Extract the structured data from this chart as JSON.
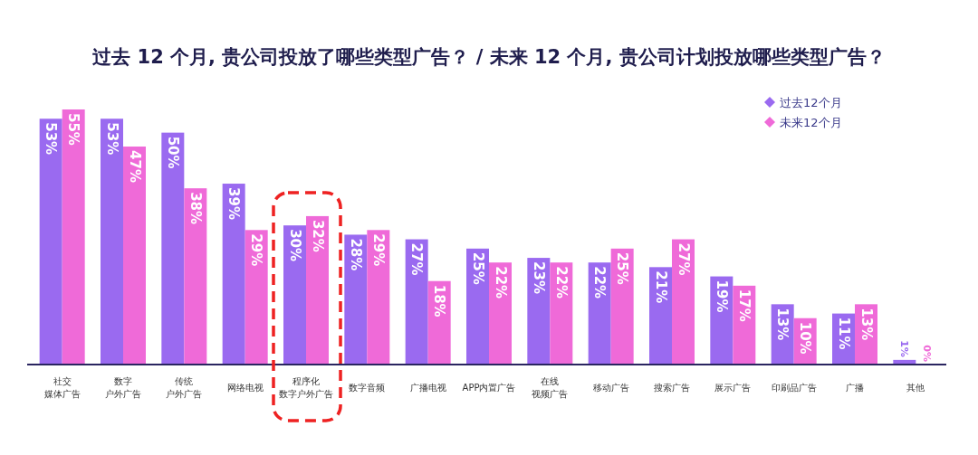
{
  "chart_data": {
    "type": "bar",
    "title": "过去 12 个月, 贵公司投放了哪些类型广告？ / 未来 12 个月, 贵公司计划投放哪些类型广告？",
    "categories": [
      "社交媒体广告",
      "数字户外广告",
      "传统户外广告",
      "网络电视",
      "程序化数字户外广告",
      "数字音频",
      "广播电视",
      "APP内置广告",
      "在线视频广告",
      "移动广告",
      "搜索广告",
      "展示广告",
      "印刷品广告",
      "广播",
      "其他"
    ],
    "series": [
      {
        "name": "过去12个月",
        "color": "#9a6af0",
        "values": [
          53,
          53,
          50,
          39,
          30,
          28,
          27,
          25,
          23,
          22,
          21,
          19,
          13,
          11,
          1
        ],
        "value_labels": [
          "53%",
          "53%",
          "50%",
          "39%",
          "30%",
          "28%",
          "27%",
          "25%",
          "23%",
          "22%",
          "21%",
          "19%",
          "13%",
          "11%",
          "1%"
        ]
      },
      {
        "name": "未来12个月",
        "color": "#ef6ad8",
        "values": [
          55,
          47,
          38,
          29,
          32,
          29,
          18,
          22,
          22,
          25,
          27,
          17,
          10,
          13,
          0
        ],
        "value_labels": [
          "55%",
          "47%",
          "38%",
          "29%",
          "32%",
          "29%",
          "18%",
          "22%",
          "22%",
          "25%",
          "27%",
          "17%",
          "10%",
          "13%",
          "0%"
        ]
      }
    ],
    "legend": "top right",
    "marker": "diamond"
  }
}
